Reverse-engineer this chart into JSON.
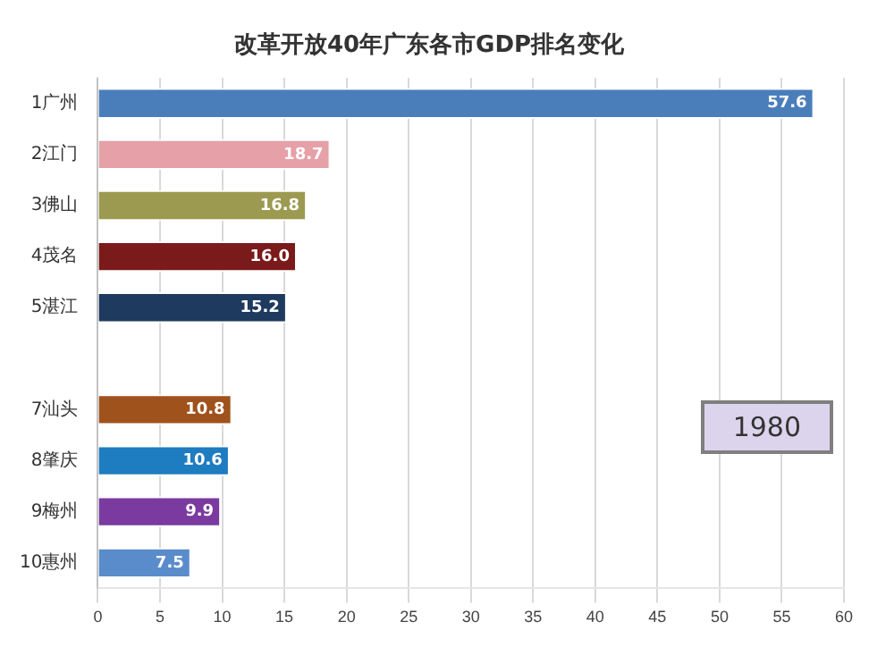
{
  "chart_data": {
    "type": "bar",
    "orientation": "horizontal",
    "title": "改革开放40年广东各市GDP排名变化",
    "categories": [
      "1广州",
      "2江门",
      "3佛山",
      "4茂名",
      "5湛江",
      null,
      "7汕头",
      "8肇庆",
      "9梅州",
      "10惠州"
    ],
    "values": [
      57.6,
      18.7,
      16.8,
      16.0,
      15.2,
      null,
      10.8,
      10.6,
      9.9,
      7.5
    ],
    "colors": [
      "#4a7ebb",
      "#e6a0a8",
      "#9c9a50",
      "#7a1a1a",
      "#1f3a5f",
      "#4f6228",
      "#a0521c",
      "#1e7cc0",
      "#7a3aa0",
      "#5a8ccc"
    ],
    "value_labels": [
      "57.6",
      "18.7",
      "16.8",
      "16.0",
      "15.2",
      null,
      "10.8",
      "10.6",
      "9.9",
      "7.5"
    ],
    "xlim": [
      0,
      60
    ],
    "xticks": [
      0,
      5,
      10,
      15,
      20,
      25,
      30,
      35,
      40,
      45,
      50,
      55,
      60
    ],
    "grid": "x",
    "legend": false,
    "annotations": [
      "1980"
    ]
  }
}
